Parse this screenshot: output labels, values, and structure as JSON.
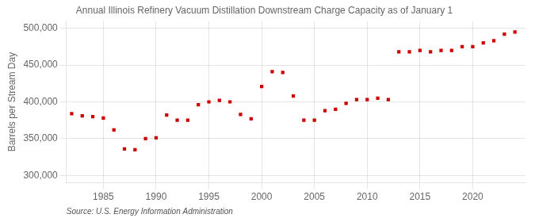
{
  "chart_data": {
    "type": "scatter",
    "title": "Annual Illinois Refinery Vacuum Distillation Downstream Charge Capacity as of January 1",
    "ylabel": "Barrels per Stream Day",
    "annotations": [
      "Source: U.S. Energy Information Administration"
    ],
    "x": [
      1982,
      1983,
      1984,
      1985,
      1986,
      1987,
      1988,
      1989,
      1990,
      1991,
      1992,
      1993,
      1994,
      1995,
      1996,
      1997,
      1998,
      1999,
      2000,
      2001,
      2002,
      2003,
      2004,
      2005,
      2006,
      2007,
      2008,
      2009,
      2010,
      2011,
      2012,
      2013,
      2014,
      2015,
      2016,
      2017,
      2018,
      2019,
      2020,
      2021,
      2022,
      2023,
      2024
    ],
    "values": [
      384000,
      381000,
      380000,
      378000,
      362000,
      336000,
      335000,
      350000,
      351000,
      382000,
      375000,
      375000,
      396000,
      400000,
      402000,
      400000,
      383000,
      377000,
      421000,
      441000,
      440000,
      408000,
      375000,
      375000,
      388000,
      390000,
      398000,
      403000,
      403000,
      405000,
      403000,
      468000,
      468000,
      470000,
      468000,
      470000,
      470000,
      475000,
      475000,
      480000,
      483000,
      492000,
      495000
    ],
    "color": "#cc0000",
    "marker": "square",
    "xlim": [
      1981.5,
      2025
    ],
    "xticks": [
      1985,
      1990,
      1995,
      2000,
      2005,
      2010,
      2015,
      2020
    ],
    "ylim": [
      290000,
      510000
    ],
    "yticks": [
      {
        "value": 300000,
        "label": "300,000"
      },
      {
        "value": 350000,
        "label": "350,000"
      },
      {
        "value": 400000,
        "label": "400,000"
      },
      {
        "value": 450000,
        "label": "450,000"
      },
      {
        "value": 500000,
        "label": "500,000"
      }
    ],
    "grid": true
  }
}
